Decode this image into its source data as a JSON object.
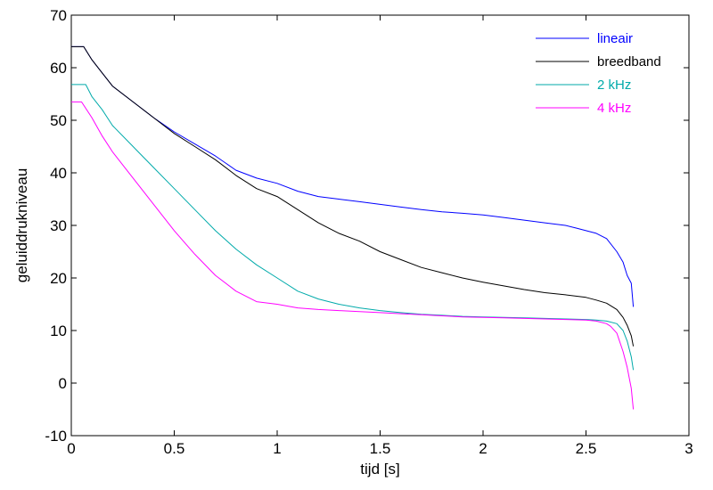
{
  "chart_data": {
    "type": "line",
    "title": "",
    "xlabel": "tijd  [s]",
    "ylabel": "geluiddrukniveau",
    "xlim": [
      0,
      3
    ],
    "ylim": [
      -10,
      70
    ],
    "xticks": [
      0,
      0.5,
      1,
      1.5,
      2,
      2.5,
      3
    ],
    "xtick_labels": [
      "0",
      "0.5",
      "1",
      "1.5",
      "2",
      "2.5",
      "3"
    ],
    "yticks": [
      -10,
      0,
      10,
      20,
      30,
      40,
      50,
      60,
      70
    ],
    "ytick_labels": [
      "-10",
      "0",
      "10",
      "20",
      "30",
      "40",
      "50",
      "60",
      "70"
    ],
    "grid": false,
    "legend_position": "top-right",
    "series": [
      {
        "name": "lineair",
        "color": "#0000ff",
        "x": [
          0,
          0.06,
          0.1,
          0.15,
          0.2,
          0.3,
          0.4,
          0.5,
          0.6,
          0.7,
          0.8,
          0.9,
          1.0,
          1.1,
          1.2,
          1.3,
          1.4,
          1.5,
          1.6,
          1.7,
          1.8,
          1.9,
          2.0,
          2.1,
          2.2,
          2.3,
          2.4,
          2.45,
          2.5,
          2.55,
          2.6,
          2.65,
          2.68,
          2.7,
          2.72,
          2.73
        ],
        "y": [
          64,
          64,
          61.5,
          59,
          56.5,
          53.5,
          50.5,
          47.8,
          45.5,
          43.2,
          40.5,
          39,
          38,
          36.5,
          35.5,
          35,
          34.5,
          34,
          33.5,
          33,
          32.6,
          32.3,
          32,
          31.5,
          31,
          30.5,
          30,
          29.5,
          29,
          28.5,
          27.5,
          25,
          23,
          20.5,
          19,
          14.5
        ]
      },
      {
        "name": "breedband",
        "color": "#000000",
        "x": [
          0,
          0.06,
          0.1,
          0.15,
          0.2,
          0.3,
          0.4,
          0.5,
          0.6,
          0.7,
          0.8,
          0.9,
          1.0,
          1.1,
          1.2,
          1.3,
          1.4,
          1.5,
          1.6,
          1.7,
          1.8,
          1.9,
          2.0,
          2.1,
          2.2,
          2.3,
          2.4,
          2.5,
          2.55,
          2.6,
          2.65,
          2.68,
          2.7,
          2.72,
          2.73
        ],
        "y": [
          64,
          64,
          61.5,
          59,
          56.5,
          53.5,
          50.5,
          47.5,
          45,
          42.5,
          39.5,
          37,
          35.5,
          33,
          30.5,
          28.5,
          27,
          25,
          23.5,
          22,
          21,
          20,
          19.2,
          18.5,
          17.8,
          17.2,
          16.8,
          16.3,
          15.8,
          15.2,
          14,
          12.5,
          11,
          9,
          7
        ]
      },
      {
        "name": "2 kHz",
        "color": "#00aaaa",
        "x": [
          0,
          0.07,
          0.1,
          0.15,
          0.2,
          0.3,
          0.4,
          0.5,
          0.6,
          0.7,
          0.8,
          0.9,
          1.0,
          1.1,
          1.2,
          1.3,
          1.4,
          1.5,
          1.6,
          1.7,
          1.8,
          1.9,
          2.0,
          2.1,
          2.2,
          2.3,
          2.4,
          2.5,
          2.55,
          2.6,
          2.65,
          2.68,
          2.7,
          2.72,
          2.73
        ],
        "y": [
          56.8,
          56.8,
          54.5,
          52,
          49,
          45,
          41,
          37,
          33,
          29,
          25.5,
          22.5,
          20,
          17.5,
          16,
          15,
          14.3,
          13.8,
          13.4,
          13.1,
          12.9,
          12.7,
          12.6,
          12.5,
          12.4,
          12.3,
          12.2,
          12.1,
          12,
          11.8,
          11.3,
          10,
          8,
          5,
          2.5
        ]
      },
      {
        "name": "4 kHz",
        "color": "#ff00ff",
        "x": [
          0,
          0.05,
          0.1,
          0.15,
          0.2,
          0.3,
          0.4,
          0.5,
          0.6,
          0.7,
          0.8,
          0.9,
          1.0,
          1.1,
          1.2,
          1.3,
          1.4,
          1.5,
          1.6,
          1.7,
          1.8,
          1.9,
          2.0,
          2.1,
          2.2,
          2.3,
          2.4,
          2.5,
          2.55,
          2.6,
          2.62,
          2.65,
          2.68,
          2.7,
          2.72,
          2.73
        ],
        "y": [
          53.5,
          53.5,
          50.5,
          47,
          44,
          39,
          34,
          29,
          24.5,
          20.5,
          17.5,
          15.5,
          15,
          14.3,
          14,
          13.8,
          13.6,
          13.4,
          13.2,
          13,
          12.8,
          12.6,
          12.5,
          12.4,
          12.3,
          12.2,
          12.1,
          12,
          11.8,
          11.3,
          10.8,
          9.5,
          6,
          3,
          -1,
          -5
        ]
      }
    ]
  }
}
